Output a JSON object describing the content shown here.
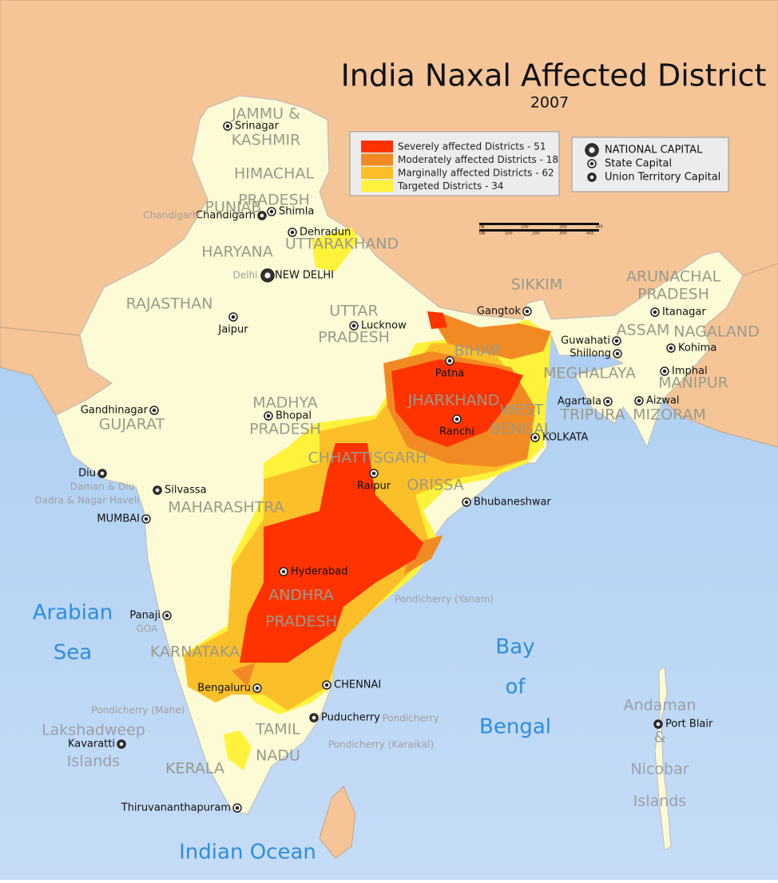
{
  "title": "India Naxal Affected District",
  "subtitle": "2007",
  "legend": [
    {
      "label": "Severely affected Districts - 51",
      "color": "#ff3300"
    },
    {
      "label": "Moderately affected Districts - 18",
      "color": "#f28a24"
    },
    {
      "label": "Marginally affected Districts - 62",
      "color": "#fbbf2a"
    },
    {
      "label": "Targeted Districts - 34",
      "color": "#fff23a"
    }
  ],
  "capital_legend": [
    {
      "label": "NATIONAL CAPITAL",
      "kind": "national"
    },
    {
      "label": "State Capital",
      "kind": "state"
    },
    {
      "label": "Union Territory Capital",
      "kind": "ut"
    }
  ],
  "scale_labels": [
    "mi",
    "0",
    "100",
    "200",
    "300",
    "km",
    "0",
    "100",
    "200",
    "300",
    "400"
  ],
  "cities": [
    {
      "label": "Srinagar",
      "kind": "state"
    },
    {
      "label": "Shimla",
      "kind": "state"
    },
    {
      "label": "Chandigarh",
      "kind": "ut"
    },
    {
      "label": "Dehradun",
      "kind": "state"
    },
    {
      "label": "NEW DELHI",
      "kind": "national"
    },
    {
      "label": "Jaipur",
      "kind": "state"
    },
    {
      "label": "Lucknow",
      "kind": "state"
    },
    {
      "label": "Patna",
      "kind": "state"
    },
    {
      "label": "Gangtok",
      "kind": "state"
    },
    {
      "label": "Guwahati",
      "kind": "state"
    },
    {
      "label": "Shillong",
      "kind": "state"
    },
    {
      "label": "Itanagar",
      "kind": "state"
    },
    {
      "label": "Kohima",
      "kind": "state"
    },
    {
      "label": "Imphal",
      "kind": "state"
    },
    {
      "label": "Agartala",
      "kind": "state"
    },
    {
      "label": "Aizwal",
      "kind": "state"
    },
    {
      "label": "Ranchi",
      "kind": "state"
    },
    {
      "label": "KOLKATA",
      "kind": "state"
    },
    {
      "label": "Gandhinagar",
      "kind": "state"
    },
    {
      "label": "Bhopal",
      "kind": "state"
    },
    {
      "label": "Raipur",
      "kind": "state"
    },
    {
      "label": "Silvassa",
      "kind": "ut"
    },
    {
      "label": "Diu",
      "kind": "ut"
    },
    {
      "label": "Bhubaneshwar",
      "kind": "state"
    },
    {
      "label": "MUMBAI",
      "kind": "state"
    },
    {
      "label": "Hyderabad",
      "kind": "state"
    },
    {
      "label": "Panaji",
      "kind": "state"
    },
    {
      "label": "Bengaluru",
      "kind": "state"
    },
    {
      "label": "CHENNAI",
      "kind": "state"
    },
    {
      "label": "Puducherry",
      "kind": "ut"
    },
    {
      "label": "Kavaratti",
      "kind": "ut"
    },
    {
      "label": "Thiruvananthapuram",
      "kind": "state"
    },
    {
      "label": "Port Blair",
      "kind": "ut"
    }
  ],
  "regions": [
    [
      "JAMMU &",
      "KASHMIR"
    ],
    [
      "HIMACHAL",
      "PRADESH"
    ],
    [
      "PUNJAB"
    ],
    [
      "UTTARAKHAND"
    ],
    [
      "HARYANA"
    ],
    [
      "RAJASTHAN"
    ],
    [
      "UTTAR",
      "PRADESH"
    ],
    [
      "BIHAR"
    ],
    [
      "SIKKIM"
    ],
    [
      "ARUNACHAL",
      "PRADESH"
    ],
    [
      "ASSAM"
    ],
    [
      "NAGALAND"
    ],
    [
      "MEGHALAYA"
    ],
    [
      "MANIPUR"
    ],
    [
      "TRIPURA"
    ],
    [
      "MIZORAM"
    ],
    [
      "JHARKHAND"
    ],
    [
      "WEST",
      "BENGAL"
    ],
    [
      "MADHYA",
      "PRADESH"
    ],
    [
      "GUJARAT"
    ],
    [
      "CHHATTISGARH"
    ],
    [
      "ORISSA"
    ],
    [
      "MAHARASHTRA"
    ],
    [
      "ANDHRA",
      "PRADESH"
    ],
    [
      "KARNATAKA"
    ],
    [
      "TAMIL",
      "NADU"
    ],
    [
      "KERALA"
    ]
  ],
  "territories": [
    "Chandigarh",
    "Delhi",
    "Daman & Diu",
    "Dadra & Nagar Haveli",
    "GOA",
    "Pondicherry (Yanam)",
    "Pondicherry (Mahe)",
    "Pondicherry",
    "Pondicherry (Karaikal)"
  ],
  "water": [
    [
      "Arabian",
      "Sea"
    ],
    [
      "Bay",
      "of",
      "Bengal"
    ],
    [
      "Indian Ocean"
    ]
  ],
  "islands": [
    [
      "Lakshadweep",
      "Islands"
    ],
    [
      "Andaman",
      "&",
      "Nicobar",
      "Islands"
    ]
  ]
}
